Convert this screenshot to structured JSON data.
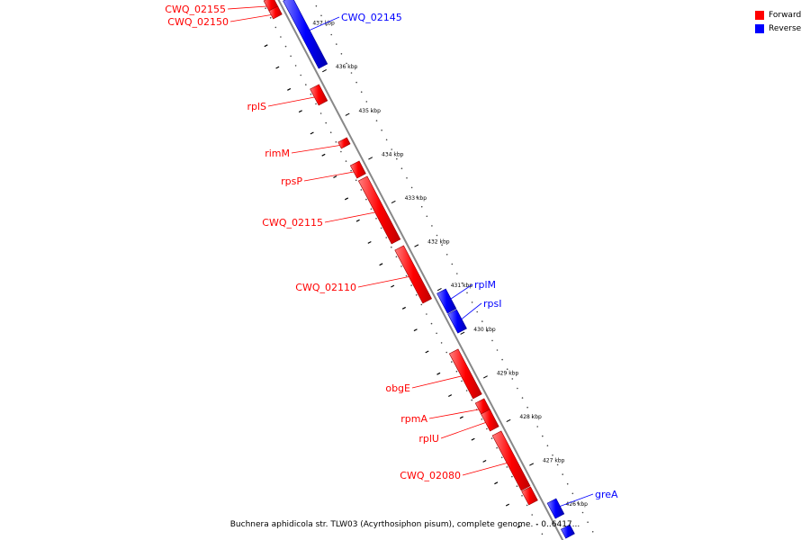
{
  "legend": {
    "forward_label": "Forward",
    "forward_color": "#ff0000",
    "reverse_label": "Reverse",
    "reverse_color": "#0000ff"
  },
  "caption": "Buchnera aphidicola str. TLW03 (Acyrthosiphon pisum), complete genome. - 0..6417...",
  "scale": {
    "ticks": [
      "437 kbp",
      "436 kbp",
      "435 kbp",
      "434 kbp",
      "433 kbp",
      "432 kbp",
      "431 kbp",
      "430 kbp",
      "429 kbp",
      "428 kbp",
      "427 kbp",
      "426 kbp"
    ]
  },
  "genes": [
    {
      "name": "CWQ_02155",
      "strand": "forward"
    },
    {
      "name": "CWQ_02150",
      "strand": "forward"
    },
    {
      "name": "CWQ_02145",
      "strand": "reverse"
    },
    {
      "name": "rplS",
      "strand": "forward"
    },
    {
      "name": "rimM",
      "strand": "forward"
    },
    {
      "name": "rpsP",
      "strand": "forward"
    },
    {
      "name": "CWQ_02115",
      "strand": "forward"
    },
    {
      "name": "CWQ_02110",
      "strand": "forward"
    },
    {
      "name": "rplM",
      "strand": "reverse"
    },
    {
      "name": "rpsI",
      "strand": "reverse"
    },
    {
      "name": "obgE",
      "strand": "forward"
    },
    {
      "name": "rpmA",
      "strand": "forward"
    },
    {
      "name": "rplU",
      "strand": "forward"
    },
    {
      "name": "CWQ_02080",
      "strand": "forward"
    },
    {
      "name": "greA",
      "strand": "reverse"
    }
  ]
}
